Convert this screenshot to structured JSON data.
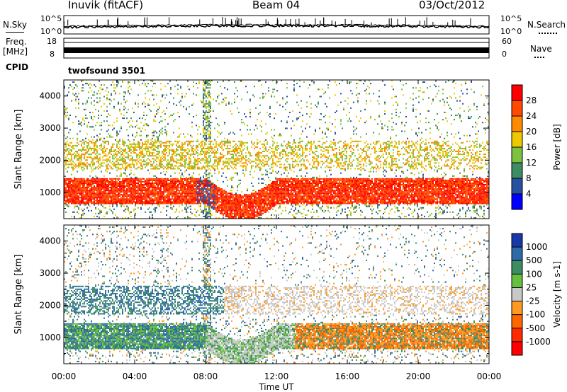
{
  "header": {
    "station": "Inuvik (fitACF)",
    "beam": "Beam 04",
    "date": "03/Oct/2012"
  },
  "noise_panel": {
    "left_label": "N.Sky",
    "right_label": "N.Search",
    "left_ticks": [
      "10^5",
      "10^0"
    ],
    "right_ticks": [
      "10^5",
      "10^0"
    ]
  },
  "freq_panel": {
    "left_label_1": "Freq.",
    "left_label_2": "[MHz]",
    "left_ticks": [
      "18",
      "8"
    ],
    "right_label": "Nave",
    "right_ticks": [
      "60",
      "0"
    ]
  },
  "cpid": {
    "label": "CPID",
    "value": "twofsound 3501"
  },
  "chart_data": [
    {
      "type": "heatmap",
      "title": "",
      "xlabel": "Time UT",
      "ylabel": "Slant Range [km]",
      "x_ticks": [
        "00:00",
        "04:00",
        "08:00",
        "12:00",
        "16:00",
        "20:00",
        "00:00"
      ],
      "xlim_hours": [
        0,
        24
      ],
      "y_ticks": [
        1000,
        2000,
        3000,
        4000
      ],
      "ylim": [
        180,
        4500
      ],
      "colorbar_label": "Power [dB]",
      "colorbar_ticks": [
        "28",
        "24",
        "20",
        "16",
        "12",
        "8",
        "4"
      ],
      "colorbar_colors": [
        "#ff0000",
        "#ff4a00",
        "#ff8a00",
        "#f0c800",
        "#7cc240",
        "#3c8c64",
        "#2850a0",
        "#0000ff"
      ],
      "features": [
        {
          "name": "main echo band",
          "hours": [
            0,
            24
          ],
          "range_km": [
            600,
            1500
          ],
          "level": "24-28 dB"
        },
        {
          "name": "post-midnight descent",
          "hours": [
            8,
            12
          ],
          "range_km": [
            200,
            800
          ],
          "level": "24-28 dB"
        },
        {
          "name": "second hop",
          "hours": [
            0,
            24
          ],
          "range_km": [
            1800,
            2600
          ],
          "level": "12-20 dB"
        }
      ]
    },
    {
      "type": "heatmap",
      "title": "",
      "xlabel": "Time UT",
      "ylabel": "Slant Range [km]",
      "x_ticks": [
        "00:00",
        "04:00",
        "08:00",
        "12:00",
        "16:00",
        "20:00",
        "00:00"
      ],
      "xlim_hours": [
        0,
        24
      ],
      "y_ticks": [
        1000,
        2000,
        3000,
        4000
      ],
      "ylim": [
        180,
        4500
      ],
      "colorbar_label": "Velocity [m s-1]",
      "colorbar_ticks": [
        "1000",
        "500",
        "100",
        "25",
        "-25",
        "-100",
        "-500",
        "-1000"
      ],
      "colorbar_colors": [
        "#1838a8",
        "#2f6aa8",
        "#3c8c64",
        "#66c040",
        "#c8c8c8",
        "#ff9a20",
        "#ff6600",
        "#ff2a00",
        "#ff0000"
      ],
      "features": [
        {
          "name": "main band",
          "hours": [
            0,
            8
          ],
          "range_km": [
            600,
            1500
          ],
          "velocity": "25 to 500 m/s"
        },
        {
          "name": "descending band",
          "hours": [
            8,
            12
          ],
          "range_km": [
            300,
            900
          ],
          "velocity": "-25 to 100 m/s"
        },
        {
          "name": "afternoon band",
          "hours": [
            12,
            24
          ],
          "range_km": [
            600,
            1500
          ],
          "velocity": "-100 to -500 m/s"
        },
        {
          "name": "upper ground scatter",
          "hours": [
            10,
            24
          ],
          "range_km": [
            1800,
            2500
          ],
          "velocity": "-25 to 25 m/s"
        }
      ]
    }
  ]
}
